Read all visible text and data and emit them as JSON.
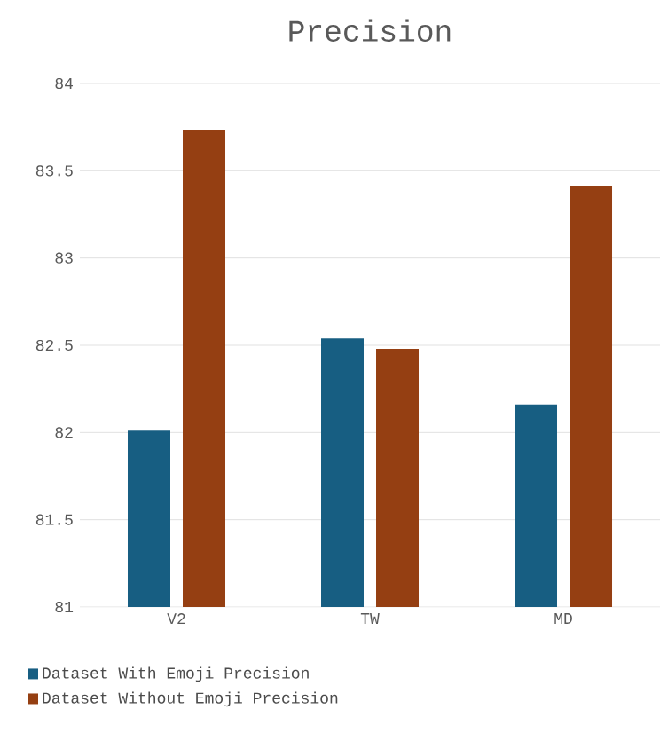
{
  "chart_data": {
    "type": "bar",
    "title": "Precision",
    "categories": [
      "V2",
      "TW",
      "MD"
    ],
    "series": [
      {
        "name": "Dataset With Emoji Precision",
        "color": "#175e82",
        "values": [
          82.01,
          82.54,
          82.16
        ]
      },
      {
        "name": "Dataset Without Emoji Precision",
        "color": "#953f12",
        "values": [
          83.73,
          82.48,
          83.41
        ]
      }
    ],
    "ylim": [
      81,
      84
    ],
    "yticks": [
      81,
      81.5,
      82,
      82.5,
      83,
      83.5,
      84
    ],
    "grid": "y",
    "legend": "bottom"
  }
}
